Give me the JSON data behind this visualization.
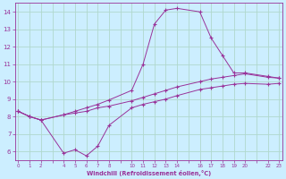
{
  "background_color": "#cceeff",
  "grid_color": "#b0d8cc",
  "line_color": "#993399",
  "marker": "+",
  "xlabel": "Windchill (Refroidissement éolien,°C)",
  "xlim": [
    0,
    23
  ],
  "ylim": [
    5.5,
    14.5
  ],
  "xticks_all": [
    0,
    1,
    2,
    3,
    4,
    5,
    6,
    7,
    8,
    9,
    10,
    11,
    12,
    13,
    14,
    15,
    16,
    17,
    18,
    19,
    20,
    21,
    22,
    23
  ],
  "xtick_labels": [
    "0",
    "1",
    "2",
    "",
    "4",
    "5",
    "6",
    "7",
    "8",
    "",
    "10",
    "11",
    "12",
    "13",
    "14",
    "",
    "16",
    "17",
    "18",
    "19",
    "20",
    "",
    "22",
    "23"
  ],
  "yticks": [
    6,
    7,
    8,
    9,
    10,
    11,
    12,
    13,
    14
  ],
  "line1_x": [
    0,
    1,
    2,
    4,
    5,
    6,
    7,
    8,
    10,
    11,
    12,
    13,
    14,
    16,
    17,
    18,
    19,
    20,
    22,
    23
  ],
  "line1_y": [
    8.3,
    8.0,
    7.8,
    8.1,
    8.3,
    8.5,
    8.7,
    8.95,
    9.5,
    11.0,
    13.3,
    14.1,
    14.2,
    14.0,
    12.5,
    11.5,
    10.5,
    10.5,
    10.3,
    10.2
  ],
  "line2_x": [
    0,
    1,
    2,
    4,
    5,
    6,
    7,
    8,
    10,
    11,
    12,
    13,
    14,
    16,
    17,
    18,
    19,
    20,
    22,
    23
  ],
  "line2_y": [
    8.3,
    8.0,
    7.8,
    8.1,
    8.2,
    8.3,
    8.5,
    8.6,
    8.9,
    9.1,
    9.3,
    9.5,
    9.7,
    10.0,
    10.15,
    10.25,
    10.35,
    10.45,
    10.25,
    10.2
  ],
  "line3_x": [
    0,
    1,
    2,
    4,
    5,
    6,
    7,
    8,
    10,
    11,
    12,
    13,
    14,
    16,
    17,
    18,
    19,
    20,
    22,
    23
  ],
  "line3_y": [
    8.3,
    8.0,
    7.8,
    5.9,
    6.1,
    5.75,
    6.3,
    7.5,
    8.5,
    8.7,
    8.85,
    9.0,
    9.2,
    9.55,
    9.65,
    9.75,
    9.85,
    9.9,
    9.85,
    9.9
  ]
}
